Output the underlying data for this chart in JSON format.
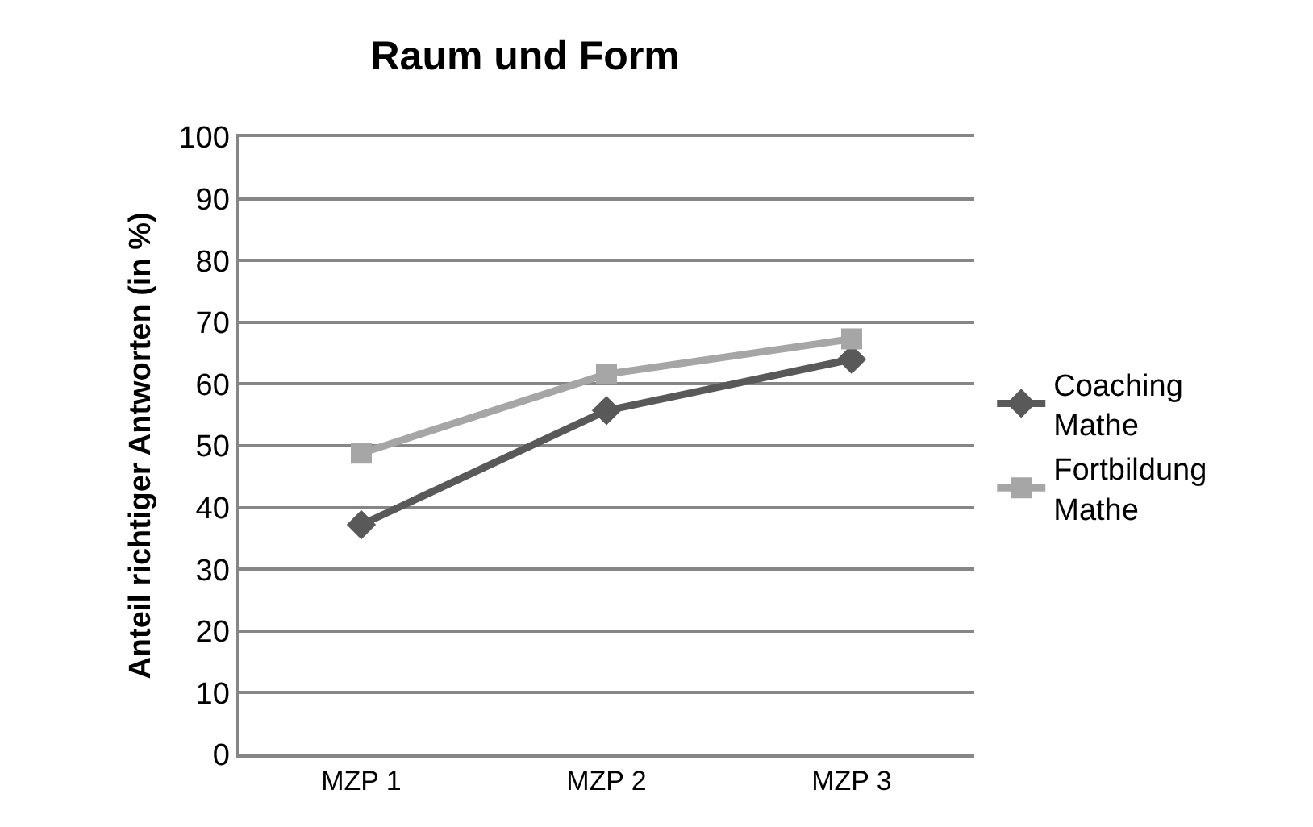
{
  "chart_data": {
    "type": "line",
    "title": "Raum und Form",
    "ylabel": "Anteil richtiger Antworten (in %)",
    "categories": [
      "MZP 1",
      "MZP 2",
      "MZP 3"
    ],
    "series": [
      {
        "name": "Coaching Mathe",
        "color": "#595959",
        "marker": "diamond",
        "values": [
          37.2,
          55.7,
          64.0
        ]
      },
      {
        "name": "Fortbildung Mathe",
        "color": "#a6a6a6",
        "marker": "square",
        "values": [
          48.8,
          61.6,
          67.3
        ]
      }
    ],
    "ylim": [
      0,
      100
    ],
    "yticks": [
      0,
      10,
      20,
      30,
      40,
      50,
      60,
      70,
      80,
      90,
      100
    ],
    "grid": "y",
    "legend": "right",
    "line_style": "solid"
  }
}
